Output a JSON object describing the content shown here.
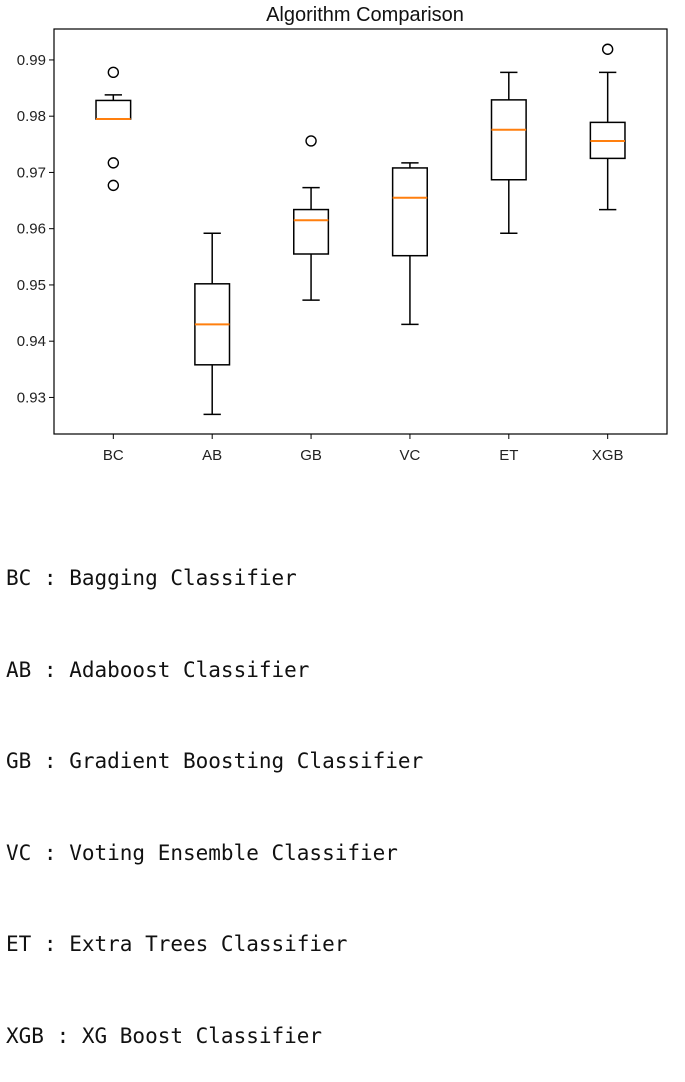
{
  "chart_data": {
    "type": "box",
    "title": "Algorithm Comparison",
    "xlabel": "",
    "ylabel": "",
    "ylim": [
      0.9235,
      0.9955
    ],
    "yticks": [
      "0.93",
      "0.94",
      "0.95",
      "0.96",
      "0.97",
      "0.98",
      "0.99"
    ],
    "categories": [
      "BC",
      "AB",
      "GB",
      "VC",
      "ET",
      "XGB"
    ],
    "boxes": [
      {
        "label": "BC",
        "whisker_low": 0.9795,
        "q1": 0.9795,
        "median": 0.9795,
        "q3": 0.9828,
        "whisker_high": 0.9838,
        "fliers": [
          0.9878,
          0.9717,
          0.9677
        ]
      },
      {
        "label": "AB",
        "whisker_low": 0.927,
        "q1": 0.9358,
        "median": 0.943,
        "q3": 0.9502,
        "whisker_high": 0.9592,
        "fliers": []
      },
      {
        "label": "GB",
        "whisker_low": 0.9473,
        "q1": 0.9555,
        "median": 0.9615,
        "q3": 0.9634,
        "whisker_high": 0.9673,
        "fliers": [
          0.9756
        ]
      },
      {
        "label": "VC",
        "whisker_low": 0.943,
        "q1": 0.9552,
        "median": 0.9655,
        "q3": 0.9708,
        "whisker_high": 0.9717,
        "fliers": []
      },
      {
        "label": "ET",
        "whisker_low": 0.9592,
        "q1": 0.9687,
        "median": 0.9776,
        "q3": 0.9829,
        "whisker_high": 0.9878,
        "fliers": []
      },
      {
        "label": "XGB",
        "whisker_low": 0.9634,
        "q1": 0.9725,
        "median": 0.9756,
        "q3": 0.9789,
        "whisker_high": 0.9878,
        "fliers": [
          0.9919
        ]
      }
    ],
    "colors": {
      "box": "#000000",
      "median": "#ff7f0e",
      "flier": "#000000"
    },
    "grid": false
  },
  "legend": [
    "BC : Bagging Classifier",
    "AB : Adaboost Classifier",
    "GB : Gradient Boosting Classifier",
    "VC : Voting Ensemble Classifier",
    "ET : Extra Trees Classifier",
    "XGB : XG Boost Classifier"
  ]
}
